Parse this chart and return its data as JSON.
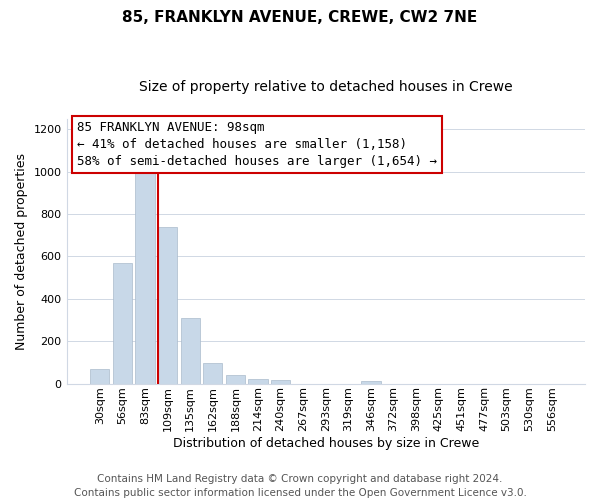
{
  "title": "85, FRANKLYN AVENUE, CREWE, CW2 7NE",
  "subtitle": "Size of property relative to detached houses in Crewe",
  "xlabel": "Distribution of detached houses by size in Crewe",
  "ylabel": "Number of detached properties",
  "bar_labels": [
    "30sqm",
    "56sqm",
    "83sqm",
    "109sqm",
    "135sqm",
    "162sqm",
    "188sqm",
    "214sqm",
    "240sqm",
    "267sqm",
    "293sqm",
    "319sqm",
    "346sqm",
    "372sqm",
    "398sqm",
    "425sqm",
    "451sqm",
    "477sqm",
    "503sqm",
    "530sqm",
    "556sqm"
  ],
  "bar_heights": [
    70,
    570,
    1000,
    740,
    310,
    95,
    40,
    20,
    15,
    0,
    0,
    0,
    10,
    0,
    0,
    0,
    0,
    0,
    0,
    0,
    0
  ],
  "bar_color": "#c8d8e8",
  "bar_edge_color": "#aabbcc",
  "vline_color": "#cc0000",
  "vline_x_index": 3,
  "ylim": [
    0,
    1250
  ],
  "yticks": [
    0,
    200,
    400,
    600,
    800,
    1000,
    1200
  ],
  "annotation_line1": "85 FRANKLYN AVENUE: 98sqm",
  "annotation_line2": "← 41% of detached houses are smaller (1,158)",
  "annotation_line3": "58% of semi-detached houses are larger (1,654) →",
  "annotation_box_color": "#ffffff",
  "annotation_box_edge": "#cc0000",
  "footer_line1": "Contains HM Land Registry data © Crown copyright and database right 2024.",
  "footer_line2": "Contains public sector information licensed under the Open Government Licence v3.0.",
  "bg_color": "#ffffff",
  "grid_color": "#d0d8e4",
  "title_fontsize": 11,
  "subtitle_fontsize": 10,
  "axis_label_fontsize": 9,
  "tick_fontsize": 8,
  "annotation_fontsize": 9,
  "footer_fontsize": 7.5
}
